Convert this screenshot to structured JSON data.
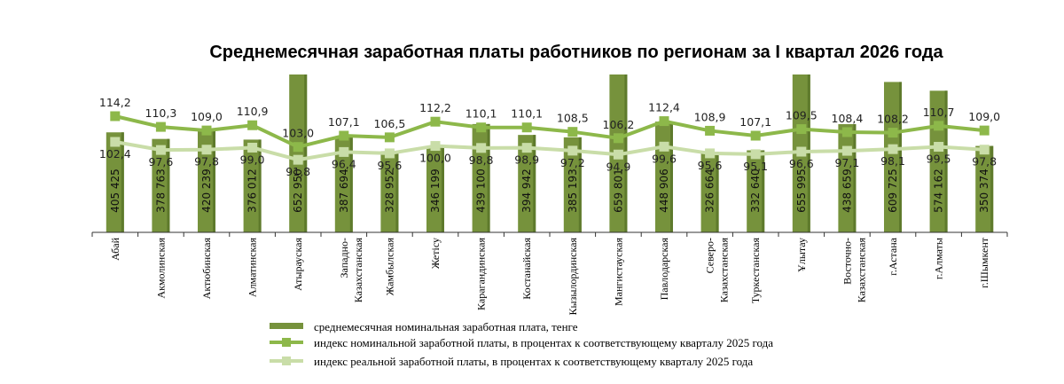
{
  "chart_data": {
    "type": "bar",
    "title": "Среднемесячная заработная платы работников по регионам за I квартал 2026 года",
    "categories": [
      [
        "Абай"
      ],
      [
        "Акмолинская"
      ],
      [
        "Актюбинская"
      ],
      [
        "Алматинская"
      ],
      [
        "Атырауская"
      ],
      [
        "Западно-",
        "Казахстанская"
      ],
      [
        "Жамбылская"
      ],
      [
        "Жетісу"
      ],
      [
        "Карагандинская"
      ],
      [
        "Костанайская"
      ],
      [
        "Кызылординская"
      ],
      [
        "Мангистауская"
      ],
      [
        "Павлодарская"
      ],
      [
        "Северо-",
        "Казахстанская"
      ],
      [
        "Туркестанская"
      ],
      [
        "Ұлытау"
      ],
      [
        "Восточно-",
        "Казахстанская"
      ],
      [
        "г.Астана"
      ],
      [
        "г.Алматы"
      ],
      [
        "г.Шымкент"
      ]
    ],
    "series": [
      {
        "name": "среднемесячная номинальная заработная плата, тенге",
        "kind": "bar",
        "values": [
          405425,
          378763,
          420239,
          376012,
          652950,
          387694,
          328952,
          346199,
          439100,
          394942,
          385193,
          659801,
          448906,
          326664,
          332640,
          655995,
          438659,
          609725,
          574162,
          350374
        ],
        "labels": [
          "405 425",
          "378 763",
          "420 239",
          "376 012",
          "652 950",
          "387 694",
          "328 952",
          "346 199",
          "439 100",
          "394 942",
          "385 193",
          "659 801",
          "448 906",
          "326 664",
          "332 640",
          "655 995",
          "438 659",
          "609 725",
          "574 162",
          "350 374"
        ]
      },
      {
        "name": "индекс номинальной заработной платы, в процентах к соответствующему кварталу 2025 года",
        "kind": "line",
        "values": [
          114.2,
          110.3,
          109.0,
          110.9,
          103.0,
          107.1,
          106.5,
          112.2,
          110.1,
          110.1,
          108.5,
          106.2,
          112.4,
          108.9,
          107.1,
          109.5,
          108.4,
          108.2,
          110.7,
          109.0
        ],
        "labels": [
          "114,2",
          "110,3",
          "109,0",
          "110,9",
          "103,0",
          "107,1",
          "106,5",
          "112,2",
          "110,1",
          "110,1",
          "108,5",
          "106,2",
          "112,4",
          "108,9",
          "107,1",
          "109,5",
          "108,4",
          "108,2",
          "110,7",
          "109,0"
        ]
      },
      {
        "name": "индекс реальной заработной платы, в процентах к соответствующему кварталу 2025 года",
        "kind": "line",
        "values": [
          102.4,
          97.6,
          97.8,
          99.0,
          91.8,
          96.4,
          95.6,
          100.0,
          98.8,
          98.9,
          97.2,
          94.9,
          99.6,
          95.6,
          95.1,
          96.6,
          97.1,
          98.1,
          99.5,
          97.8
        ],
        "labels": [
          "102,4",
          "97,6",
          "97,8",
          "99,0",
          "91,8",
          "96,4",
          "95,6",
          "100,0",
          "98,8",
          "98,9",
          "97,2",
          "94,9",
          "99,6",
          "95,6",
          "95,1",
          "96,6",
          "97,1",
          "98,1",
          "99,5",
          "97,8"
        ]
      }
    ],
    "legend_position": "bottom",
    "grid": false,
    "colors": {
      "bar": "#76923C",
      "bar_dark": "#5E7A2C",
      "nominal_line": "#8DB84A",
      "real_line": "#C9DDA8",
      "axis": "#333333"
    }
  }
}
